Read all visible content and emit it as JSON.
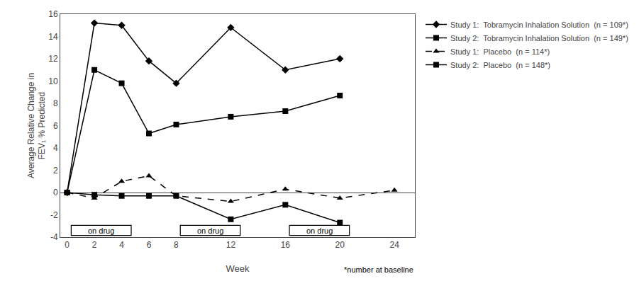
{
  "chart_data": {
    "type": "line",
    "xlabel": "Week",
    "ylabel": "Average Relative Change in\nFEV₁ % Predicted",
    "xlim": [
      -0.5,
      25.5
    ],
    "xticks": [
      0,
      2,
      4,
      6,
      8,
      12,
      16,
      20,
      24
    ],
    "ylim": [
      -4,
      16
    ],
    "yticks": [
      -4,
      -2,
      0,
      2,
      4,
      6,
      8,
      10,
      12,
      14,
      16
    ],
    "grid": false,
    "legend": "right",
    "series": [
      {
        "name": "Study 1:  Tobramycin Inhalation Solution  (n = 109*)",
        "color": "#000000",
        "marker": "diamond",
        "line_style": "solid",
        "x": [
          0,
          2,
          4,
          6,
          8,
          12,
          16,
          20
        ],
        "values": [
          0,
          15.2,
          15.0,
          11.8,
          9.8,
          14.8,
          11.0,
          12.0
        ]
      },
      {
        "name": "Study 2:  Tobramycin Inhalation Solution  (n = 149*)",
        "color": "#000000",
        "marker": "square",
        "line_style": "solid",
        "x": [
          0,
          2,
          4,
          6,
          8,
          12,
          16,
          20
        ],
        "values": [
          0,
          11.0,
          9.8,
          5.3,
          6.1,
          6.8,
          7.3,
          8.7
        ]
      },
      {
        "name": "Study 1:  Placebo  (n = 114*)",
        "color": "#000000",
        "marker": "triangle-up",
        "line_style": "dashed",
        "x": [
          0,
          2,
          4,
          6,
          8,
          12,
          16,
          20,
          24
        ],
        "values": [
          0,
          -0.5,
          1.0,
          1.5,
          -0.3,
          -0.8,
          0.3,
          -0.5,
          0.2
        ]
      },
      {
        "name": "Study 2:  Placebo  (n = 148*)",
        "color": "#000000",
        "marker": "square",
        "line_style": "solid",
        "x": [
          0,
          2,
          4,
          6,
          8,
          12,
          16,
          20
        ],
        "values": [
          0,
          -0.2,
          -0.3,
          -0.3,
          -0.3,
          -2.4,
          -1.1,
          -2.7
        ]
      }
    ],
    "annotations": [
      {
        "text": "on drug",
        "x": 2.5,
        "y": -3.4,
        "x0": 0.3,
        "x1": 4.7,
        "y0": -3.85,
        "y1": -2.95
      },
      {
        "text": "on drug",
        "x": 10.5,
        "y": -3.4,
        "x0": 8.3,
        "x1": 12.7,
        "y0": -3.85,
        "y1": -2.95
      },
      {
        "text": "on drug",
        "x": 18.5,
        "y": -3.4,
        "x0": 16.3,
        "x1": 20.7,
        "y0": -3.85,
        "y1": -2.95
      },
      {
        "text": "*number at baseline"
      }
    ]
  }
}
